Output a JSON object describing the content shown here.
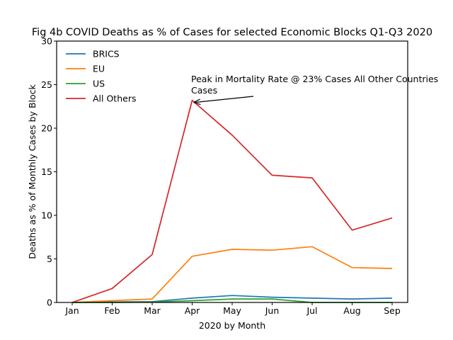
{
  "chart_data": {
    "type": "line",
    "title": "Fig 4b COVID Deaths as % of Cases for selected Economic Blocks Q1-Q3 2020",
    "xlabel": "2020 by Month",
    "ylabel": "Deaths as % of Monthly Cases by Block",
    "categories": [
      "Jan",
      "Feb",
      "Mar",
      "Apr",
      "May",
      "Jun",
      "Jul",
      "Aug",
      "Sep"
    ],
    "ylim": [
      0,
      30
    ],
    "yticks": [
      "0",
      "5",
      "10",
      "15",
      "20",
      "25",
      "30"
    ],
    "grid": false,
    "legend_position": "top-left",
    "series": [
      {
        "name": "BRICS",
        "color": "#1f77b4",
        "values": [
          0.0,
          0.05,
          0.1,
          0.5,
          0.8,
          0.6,
          0.5,
          0.4,
          0.5
        ]
      },
      {
        "name": "EU",
        "color": "#ff7f0e",
        "values": [
          0.0,
          0.2,
          0.4,
          5.3,
          6.1,
          6.0,
          6.4,
          4.0,
          3.9
        ]
      },
      {
        "name": "US",
        "color": "#2ca02c",
        "values": [
          0.0,
          0.0,
          0.05,
          0.2,
          0.4,
          0.4,
          0.0,
          0.0,
          0.0
        ]
      },
      {
        "name": "All Others",
        "color": "#d62728",
        "values": [
          0.0,
          1.6,
          5.5,
          23.2,
          19.2,
          14.6,
          14.3,
          8.3,
          9.7
        ]
      }
    ],
    "annotation": {
      "line1": "Peak in Mortality Rate @ 23% Cases All Other Countries",
      "line2": "Cases",
      "category": "Apr",
      "value": 23
    }
  }
}
